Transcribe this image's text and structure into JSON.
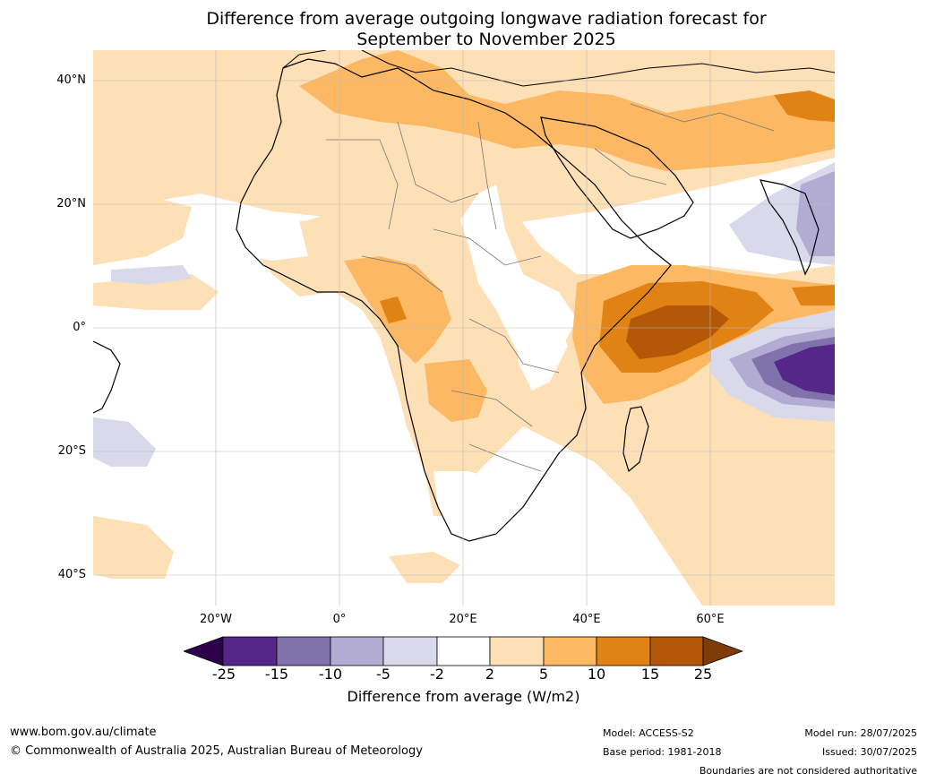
{
  "title": {
    "line1": "Difference from average outgoing longwave radiation forecast for",
    "line2": "September to November 2025"
  },
  "map": {
    "lat_labels": [
      "40°N",
      "20°N",
      "0°",
      "20°S",
      "40°S"
    ],
    "lon_labels": [
      "20°W",
      "0°",
      "20°E",
      "40°E",
      "60°E"
    ]
  },
  "legend": {
    "ticks": [
      "-25",
      "-15",
      "-10",
      "-5",
      "-2",
      "2",
      "5",
      "10",
      "15",
      "25"
    ],
    "colors": [
      "#2d004b",
      "#542788",
      "#8073ac",
      "#b2abd2",
      "#d8daeb",
      "#ffffff",
      "#fee0b6",
      "#fdb863",
      "#e08214",
      "#b35806",
      "#7f3b08"
    ],
    "label": "Difference from average (W/m2)"
  },
  "footer": {
    "website": "www.bom.gov.au/climate",
    "copyright": "© Commonwealth of Australia 2025, Australian Bureau of Meteorology",
    "model": "Model: ACCESS-S2",
    "base_period": "Base period: 1981-2018",
    "model_run": "Model run: 28/07/2025",
    "issued": "Issued: 30/07/2025",
    "disclaimer": "Boundaries are not considered authoritative"
  }
}
